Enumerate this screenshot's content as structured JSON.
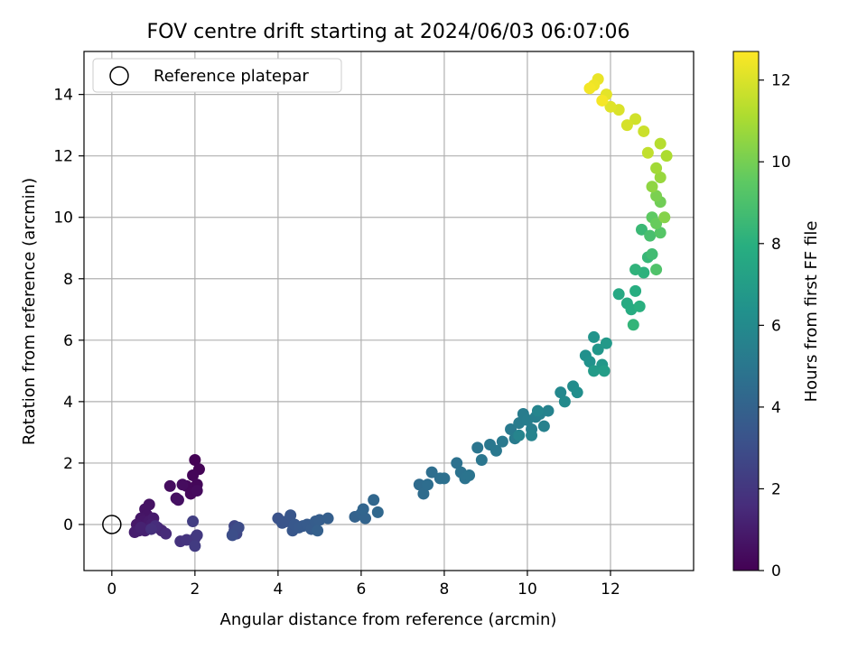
{
  "chart_data": {
    "type": "scatter",
    "title": "FOV centre drift starting at 2024/06/03 06:07:06",
    "xlabel": "Angular distance from reference (arcmin)",
    "ylabel": "Rotation from reference (arcmin)",
    "xlim": [
      -0.67,
      14.0
    ],
    "ylim": [
      -1.5,
      15.4
    ],
    "xticks": [
      0,
      2,
      4,
      6,
      8,
      10,
      12
    ],
    "yticks": [
      0,
      2,
      4,
      6,
      8,
      10,
      12,
      14
    ],
    "grid": true,
    "legend": {
      "position": "top-left",
      "entries": [
        "Reference platepar"
      ]
    },
    "reference_point": {
      "x": 0,
      "y": 0
    },
    "colorbar": {
      "label": "Hours from first FF file",
      "colormap": "viridis",
      "range": [
        0,
        12.7
      ],
      "ticks": [
        0,
        2,
        4,
        6,
        8,
        10,
        12
      ]
    },
    "series": [
      {
        "columns": [
          "x",
          "y",
          "hours"
        ],
        "points": [
          [
            2.0,
            2.1,
            0.05
          ],
          [
            2.1,
            1.8,
            0.1
          ],
          [
            1.95,
            1.6,
            0.15
          ],
          [
            2.05,
            1.3,
            0.2
          ],
          [
            1.8,
            1.25,
            0.25
          ],
          [
            1.9,
            1.0,
            0.3
          ],
          [
            2.05,
            1.1,
            0.35
          ],
          [
            1.7,
            1.3,
            0.4
          ],
          [
            1.4,
            1.25,
            0.45
          ],
          [
            1.55,
            0.85,
            0.5
          ],
          [
            1.6,
            0.8,
            0.55
          ],
          [
            0.9,
            0.65,
            0.6
          ],
          [
            0.8,
            0.5,
            0.65
          ],
          [
            0.85,
            0.3,
            0.7
          ],
          [
            0.7,
            0.2,
            0.75
          ],
          [
            0.75,
            0.1,
            0.8
          ],
          [
            0.6,
            0.0,
            0.85
          ],
          [
            0.9,
            0.1,
            0.9
          ],
          [
            1.0,
            0.2,
            0.95
          ],
          [
            0.95,
            0.0,
            1.0
          ],
          [
            0.55,
            -0.25,
            1.05
          ],
          [
            0.65,
            -0.2,
            1.1
          ],
          [
            0.8,
            -0.2,
            1.15
          ],
          [
            0.7,
            -0.1,
            1.2
          ],
          [
            1.1,
            -0.1,
            1.3
          ],
          [
            1.2,
            -0.2,
            1.4
          ],
          [
            1.3,
            -0.3,
            1.5
          ],
          [
            1.05,
            -0.05,
            1.6
          ],
          [
            0.95,
            -0.15,
            1.7
          ],
          [
            1.65,
            -0.55,
            1.8
          ],
          [
            1.8,
            -0.5,
            1.9
          ],
          [
            2.0,
            -0.45,
            2.0
          ],
          [
            2.05,
            -0.35,
            2.1
          ],
          [
            2.0,
            -0.7,
            2.2
          ],
          [
            1.95,
            0.1,
            2.3
          ],
          [
            2.95,
            -0.05,
            2.6
          ],
          [
            3.0,
            -0.3,
            2.7
          ],
          [
            2.95,
            -0.2,
            2.8
          ],
          [
            3.05,
            -0.1,
            2.9
          ],
          [
            2.9,
            -0.35,
            3.0
          ],
          [
            4.0,
            0.2,
            3.2
          ],
          [
            4.1,
            0.05,
            3.25
          ],
          [
            4.2,
            0.1,
            3.3
          ],
          [
            4.3,
            0.3,
            3.35
          ],
          [
            4.35,
            -0.2,
            3.4
          ],
          [
            4.4,
            0.0,
            3.45
          ],
          [
            4.5,
            -0.1,
            3.5
          ],
          [
            4.6,
            -0.05,
            3.55
          ],
          [
            4.7,
            0.0,
            3.6
          ],
          [
            4.8,
            -0.15,
            3.65
          ],
          [
            4.9,
            0.1,
            3.7
          ],
          [
            5.0,
            0.15,
            3.75
          ],
          [
            5.2,
            0.2,
            3.8
          ],
          [
            4.95,
            -0.2,
            3.85
          ],
          [
            5.85,
            0.25,
            3.95
          ],
          [
            6.0,
            0.35,
            4.0
          ],
          [
            6.1,
            0.2,
            4.05
          ],
          [
            6.05,
            0.5,
            4.1
          ],
          [
            6.3,
            0.8,
            4.2
          ],
          [
            6.4,
            0.4,
            4.25
          ],
          [
            7.4,
            1.3,
            4.4
          ],
          [
            7.5,
            1.0,
            4.45
          ],
          [
            7.6,
            1.3,
            4.5
          ],
          [
            7.7,
            1.7,
            4.55
          ],
          [
            7.9,
            1.5,
            4.6
          ],
          [
            8.0,
            1.5,
            4.65
          ],
          [
            8.3,
            2.0,
            4.7
          ],
          [
            8.4,
            1.7,
            4.75
          ],
          [
            8.5,
            1.5,
            4.8
          ],
          [
            8.6,
            1.6,
            4.85
          ],
          [
            8.8,
            2.5,
            4.9
          ],
          [
            8.9,
            2.1,
            4.95
          ],
          [
            9.1,
            2.6,
            5.0
          ],
          [
            9.25,
            2.4,
            5.05
          ],
          [
            9.4,
            2.7,
            5.1
          ],
          [
            9.6,
            3.1,
            5.15
          ],
          [
            9.7,
            2.8,
            5.2
          ],
          [
            9.8,
            3.3,
            5.25
          ],
          [
            9.9,
            3.6,
            5.3
          ],
          [
            10.0,
            3.4,
            5.35
          ],
          [
            10.1,
            3.1,
            5.4
          ],
          [
            10.2,
            3.5,
            5.45
          ],
          [
            10.3,
            3.6,
            5.5
          ],
          [
            10.4,
            3.2,
            5.55
          ],
          [
            10.5,
            3.7,
            5.6
          ],
          [
            10.1,
            2.9,
            5.65
          ],
          [
            9.8,
            2.9,
            5.7
          ],
          [
            10.25,
            3.7,
            5.75
          ],
          [
            10.8,
            4.3,
            5.9
          ],
          [
            10.9,
            4.0,
            6.0
          ],
          [
            11.1,
            4.5,
            6.1
          ],
          [
            11.2,
            4.3,
            6.2
          ],
          [
            11.4,
            5.5,
            6.3
          ],
          [
            11.5,
            5.3,
            6.4
          ],
          [
            11.6,
            6.1,
            6.5
          ],
          [
            11.7,
            5.7,
            6.6
          ],
          [
            11.8,
            5.2,
            6.7
          ],
          [
            11.9,
            5.9,
            6.8
          ],
          [
            11.6,
            5.0,
            6.9
          ],
          [
            11.85,
            5.0,
            7.0
          ],
          [
            12.2,
            7.5,
            7.6
          ],
          [
            12.4,
            7.2,
            7.7
          ],
          [
            12.5,
            7.0,
            7.8
          ],
          [
            12.6,
            7.6,
            7.9
          ],
          [
            12.7,
            7.1,
            8.0
          ],
          [
            12.8,
            8.2,
            8.1
          ],
          [
            12.6,
            8.3,
            8.2
          ],
          [
            12.55,
            6.5,
            8.3
          ],
          [
            12.9,
            8.7,
            8.4
          ],
          [
            12.75,
            9.6,
            8.5
          ],
          [
            13.0,
            8.8,
            8.7
          ],
          [
            12.95,
            9.4,
            8.9
          ],
          [
            13.1,
            8.3,
            9.1
          ],
          [
            13.2,
            9.5,
            9.3
          ],
          [
            13.0,
            10.0,
            9.5
          ],
          [
            13.1,
            9.8,
            9.7
          ],
          [
            13.2,
            10.5,
            9.9
          ],
          [
            13.1,
            10.7,
            10.1
          ],
          [
            13.3,
            10.0,
            10.3
          ],
          [
            13.0,
            11.0,
            10.5
          ],
          [
            13.2,
            11.3,
            10.7
          ],
          [
            13.1,
            11.6,
            10.9
          ],
          [
            13.35,
            12.0,
            11.1
          ],
          [
            13.2,
            12.4,
            11.3
          ],
          [
            12.9,
            12.1,
            11.5
          ],
          [
            12.8,
            12.8,
            11.7
          ],
          [
            12.6,
            13.2,
            11.8
          ],
          [
            12.4,
            13.0,
            11.9
          ],
          [
            12.2,
            13.5,
            12.0
          ],
          [
            12.0,
            13.6,
            12.1
          ],
          [
            11.9,
            14.0,
            12.2
          ],
          [
            11.7,
            14.5,
            12.3
          ],
          [
            11.6,
            14.3,
            12.4
          ],
          [
            11.5,
            14.2,
            12.5
          ],
          [
            11.8,
            13.8,
            12.55
          ]
        ]
      }
    ]
  }
}
